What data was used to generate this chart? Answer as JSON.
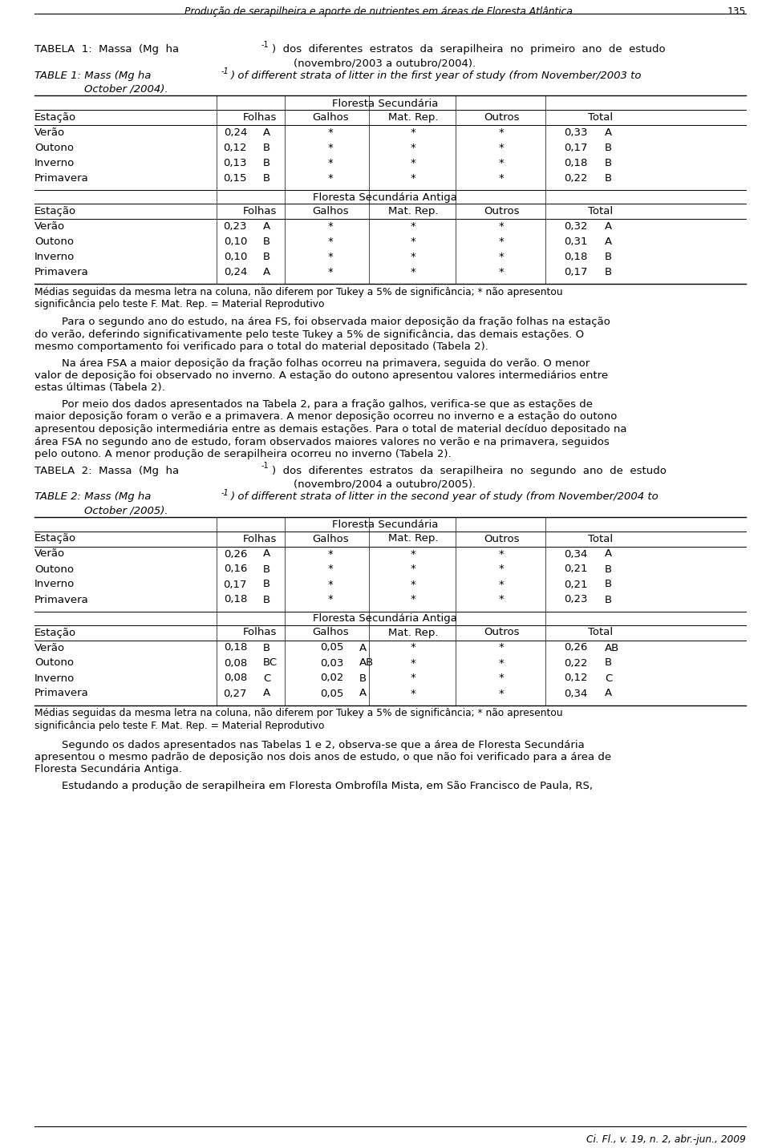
{
  "bg_color": "#ffffff",
  "header_title": "Produção de serapilheira e aporte de nutrientes em áreas de Floresta Atlântica ...",
  "header_page": "135",
  "tabela1_label": "TABELA  1:  Massa  (Mg  ha",
  "tabela1_sup": "-1",
  "tabela1_rest": ")  dos  diferentes  estratos  da  serapilheira  no  primeiro  ano  de  estudo",
  "tabela1_line2": "(novembro/2003 a outubro/2004).",
  "table1_label": "TABLE 1: Mass (Mg ha",
  "table1_sup": "-1",
  "table1_rest": ") of different strata of litter in the first year of study (from November/2003 to",
  "table1_line2": "October /2004).",
  "fs_header": "Floresta Secundária",
  "fsa_header": "Floresta Secundária Antiga",
  "col_headers": [
    "Estação",
    "Folhas",
    "Galhos",
    "Mat. Rep.",
    "Outros",
    "Total"
  ],
  "table1_fs_rows": [
    [
      "Verão",
      "0,24",
      "A",
      "*",
      "*",
      "*",
      "0,33",
      "A"
    ],
    [
      "Outono",
      "0,12",
      "B",
      "*",
      "*",
      "*",
      "0,17",
      "B"
    ],
    [
      "Inverno",
      "0,13",
      "B",
      "*",
      "*",
      "*",
      "0,18",
      "B"
    ],
    [
      "Primavera",
      "0,15",
      "B",
      "*",
      "*",
      "*",
      "0,22",
      "B"
    ]
  ],
  "table1_fsa_rows": [
    [
      "Verão",
      "0,23",
      "A",
      "*",
      "*",
      "*",
      "0,32",
      "A"
    ],
    [
      "Outono",
      "0,10",
      "B",
      "*",
      "*",
      "*",
      "0,31",
      "A"
    ],
    [
      "Inverno",
      "0,10",
      "B",
      "*",
      "*",
      "*",
      "0,18",
      "B"
    ],
    [
      "Primavera",
      "0,24",
      "A",
      "*",
      "*",
      "*",
      "0,17",
      "B"
    ]
  ],
  "footnote1_line1": "Médias seguidas da mesma letra na coluna, não diferem por Tukey a 5% de significância; * não apresentou",
  "footnote1_line2": "significância pelo teste F. Mat. Rep. = Material Reprodutivo",
  "para1_lines": [
    "        Para o segundo ano do estudo, na área FS, foi observada maior deposição da fração folhas na estação",
    "do verão, deferindo significativamente pelo teste Tukey a 5% de significância, das demais estações. O",
    "mesmo comportamento foi verificado para o total do material depositado (Tabela 2)."
  ],
  "para2_lines": [
    "        Na área FSA a maior deposição da fração folhas ocorreu na primavera, seguida do verão. O menor",
    "valor de deposição foi observado no inverno. A estação do outono apresentou valores intermediários entre",
    "estas últimas (Tabela 2)."
  ],
  "para3_lines": [
    "        Por meio dos dados apresentados na Tabela 2, para a fração galhos, verifica-se que as estações de",
    "maior deposição foram o verão e a primavera. A menor deposição ocorreu no inverno e a estação do outono",
    "apresentou deposição intermediária entre as demais estações. Para o total de material decíduo depositado na",
    "área FSA no segundo ano de estudo, foram observados maiores valores no verão e na primavera, seguidos",
    "pelo outono. A menor produção de serapilheira ocorreu no inverno (Tabela 2)."
  ],
  "tabela2_label": "TABELA  2:  Massa  (Mg  ha",
  "tabela2_sup": "-1",
  "tabela2_rest": ")  dos  diferentes  estratos  da  serapilheira  no  segundo  ano  de  estudo",
  "tabela2_line2": "(novembro/2004 a outubro/2005).",
  "table2_label": "TABLE 2: Mass (Mg ha",
  "table2_sup": "-1",
  "table2_rest": ") of different strata of litter in the second year of study (from November/2004 to",
  "table2_line2": "October /2005).",
  "table2_fs_rows": [
    [
      "Verão",
      "0,26",
      "A",
      "*",
      "*",
      "*",
      "0,34",
      "A"
    ],
    [
      "Outono",
      "0,16",
      "B",
      "*",
      "*",
      "*",
      "0,21",
      "B"
    ],
    [
      "Inverno",
      "0,17",
      "B",
      "*",
      "*",
      "*",
      "0,21",
      "B"
    ],
    [
      "Primavera",
      "0,18",
      "B",
      "*",
      "*",
      "*",
      "0,23",
      "B"
    ]
  ],
  "table2_fsa_rows": [
    [
      "Verão",
      "0,18",
      "B",
      "0,05",
      "A",
      "*",
      "*",
      "0,26",
      "AB"
    ],
    [
      "Outono",
      "0,08",
      "BC",
      "0,03",
      "AB",
      "*",
      "*",
      "0,22",
      "B"
    ],
    [
      "Inverno",
      "0,08",
      "C",
      "0,02",
      "B",
      "*",
      "*",
      "0,12",
      "C"
    ],
    [
      "Primavera",
      "0,27",
      "A",
      "0,05",
      "A",
      "*",
      "*",
      "0,34",
      "A"
    ]
  ],
  "footnote2_line1": "Médias seguidas da mesma letra na coluna, não diferem por Tukey a 5% de significância; * não apresentou",
  "footnote2_line2": "significância pelo teste F. Mat. Rep. = Material Reprodutivo",
  "para4_lines": [
    "        Segundo os dados apresentados nas Tabelas 1 e 2, observa-se que a área de Floresta Secundária",
    "apresentou o mesmo padrão de deposição nos dois anos de estudo, o que não foi verificado para a área de",
    "Floresta Secundária Antiga."
  ],
  "para5_lines": [
    "        Estudando a produção de serapilheira em Floresta Ombrofíla Mista, em São Francisco de Paula, RS,"
  ],
  "footer": "Ci. Fl., v. 19, n. 2, abr.-jun., 2009"
}
